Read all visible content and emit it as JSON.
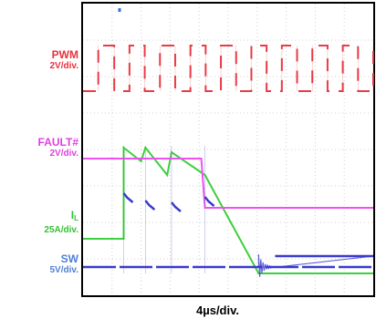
{
  "chart_data": {
    "type": "line",
    "title": "",
    "xlabel": "4µs/div.",
    "grid": true,
    "x_unit": "µs",
    "x_range": [
      0,
      40
    ],
    "x_divisions": 10,
    "y_divisions": 8,
    "channels": [
      {
        "name": "PWM",
        "scale": "2V/div.",
        "color": "#e8323c",
        "shape": "square-wave",
        "period_us": 4.2,
        "duty": 0.5,
        "edges_us": [
          2.1,
          4.3,
          6.4,
          8.5,
          10.6,
          12.7,
          14.8,
          16.9,
          19.0,
          21.1,
          23.2,
          25.3,
          27.4,
          29.5,
          31.6,
          33.7,
          35.8,
          37.9,
          40.0
        ]
      },
      {
        "name": "FAULT#",
        "name_sub": "",
        "scale": "2V/div.",
        "color": "#f050f0",
        "shape": "step-low",
        "fault_time_us": 16.8
      },
      {
        "name": "I",
        "name_sub": "L",
        "scale": "25A/div.",
        "color": "#3ecf3e",
        "shape": "ramp",
        "points_us": [
          [
            0,
            0
          ],
          [
            5.6,
            0
          ],
          [
            5.6,
            1
          ],
          [
            8.0,
            0.85
          ],
          [
            8.6,
            1
          ],
          [
            11.6,
            0.7
          ],
          [
            12.2,
            0.95
          ],
          [
            16.8,
            0.7
          ],
          [
            24.2,
            -0.38
          ],
          [
            40,
            -0.38
          ]
        ]
      },
      {
        "name": "SW",
        "scale": "5V/div.",
        "color": "#3a3acf",
        "shape": "switch-node",
        "ringing_at_us": 24.2
      }
    ]
  },
  "labels": {
    "pwm_name": "PWM",
    "pwm_scale": "2V/div.",
    "fault_name": "FAULT#",
    "fault_scale": "2V/div.",
    "il_name": "I",
    "il_sub": "L",
    "il_scale": "25A/div.",
    "sw_name": "SW",
    "sw_scale": "5V/div.",
    "xdiv": "4µs/div."
  }
}
